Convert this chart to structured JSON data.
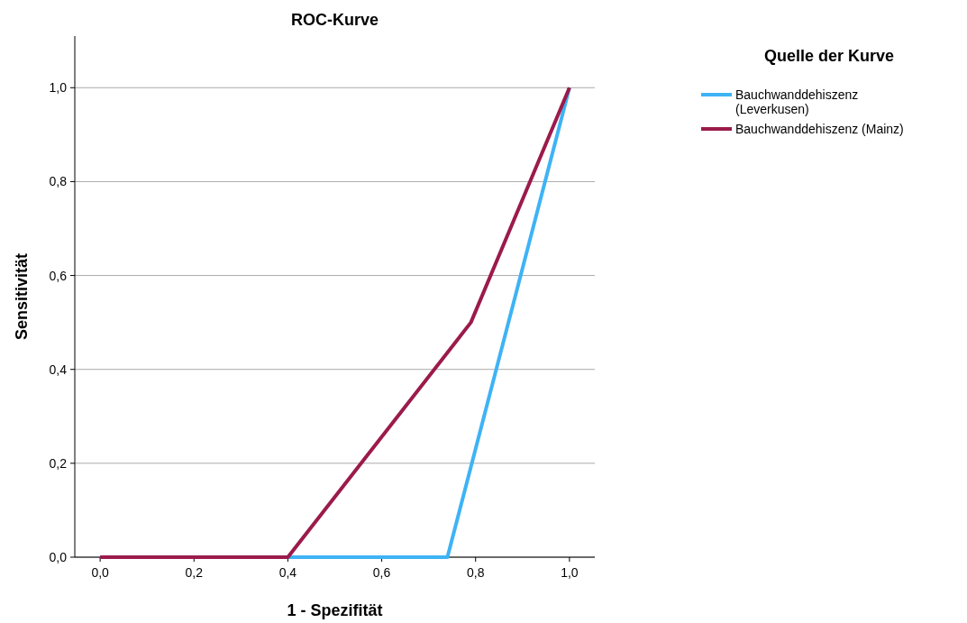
{
  "chart_data": {
    "type": "line",
    "title": "ROC-Kurve",
    "xlabel": "1 - Spezifität",
    "ylabel": "Sensitivität",
    "legend_title": "Quelle der Kurve",
    "legend": "top right",
    "grid": "y",
    "marker": "none",
    "line_style": "solid",
    "xlim": [
      -0.054,
      1.054
    ],
    "ylim": [
      0,
      1.11
    ],
    "xticks": [
      {
        "value": 0,
        "label": "0,0"
      },
      {
        "value": 0.2,
        "label": "0,2"
      },
      {
        "value": 0.4,
        "label": "0,4"
      },
      {
        "value": 0.6,
        "label": "0,6"
      },
      {
        "value": 0.8,
        "label": "0,8"
      },
      {
        "value": 1,
        "label": "1,0"
      }
    ],
    "yticks": [
      {
        "value": 0,
        "label": "0,0"
      },
      {
        "value": 0.2,
        "label": "0,2"
      },
      {
        "value": 0.4,
        "label": "0,4"
      },
      {
        "value": 0.6,
        "label": "0,6"
      },
      {
        "value": 0.8,
        "label": "0,8"
      },
      {
        "value": 1,
        "label": "1,0"
      }
    ],
    "series": [
      {
        "name": "Bauchwanddehiszenz (Leverkusen)",
        "color": "#3eb3f5",
        "x": [
          0,
          0.74,
          1
        ],
        "values": [
          0,
          0,
          1
        ]
      },
      {
        "name": "Bauchwanddehiszenz (Mainz)",
        "color": "#9b1b4b",
        "x": [
          0,
          0.4,
          0.79,
          1
        ],
        "values": [
          0,
          0,
          0.5,
          1
        ]
      }
    ]
  }
}
